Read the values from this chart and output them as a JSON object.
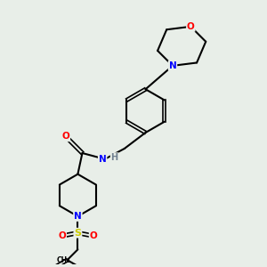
{
  "background_color": "#e8eee8",
  "atom_colors": {
    "C": "#000000",
    "N": "#0000ff",
    "O": "#ff0000",
    "S": "#cccc00",
    "H": "#708090"
  },
  "bond_color": "#000000",
  "bond_width": 1.5
}
